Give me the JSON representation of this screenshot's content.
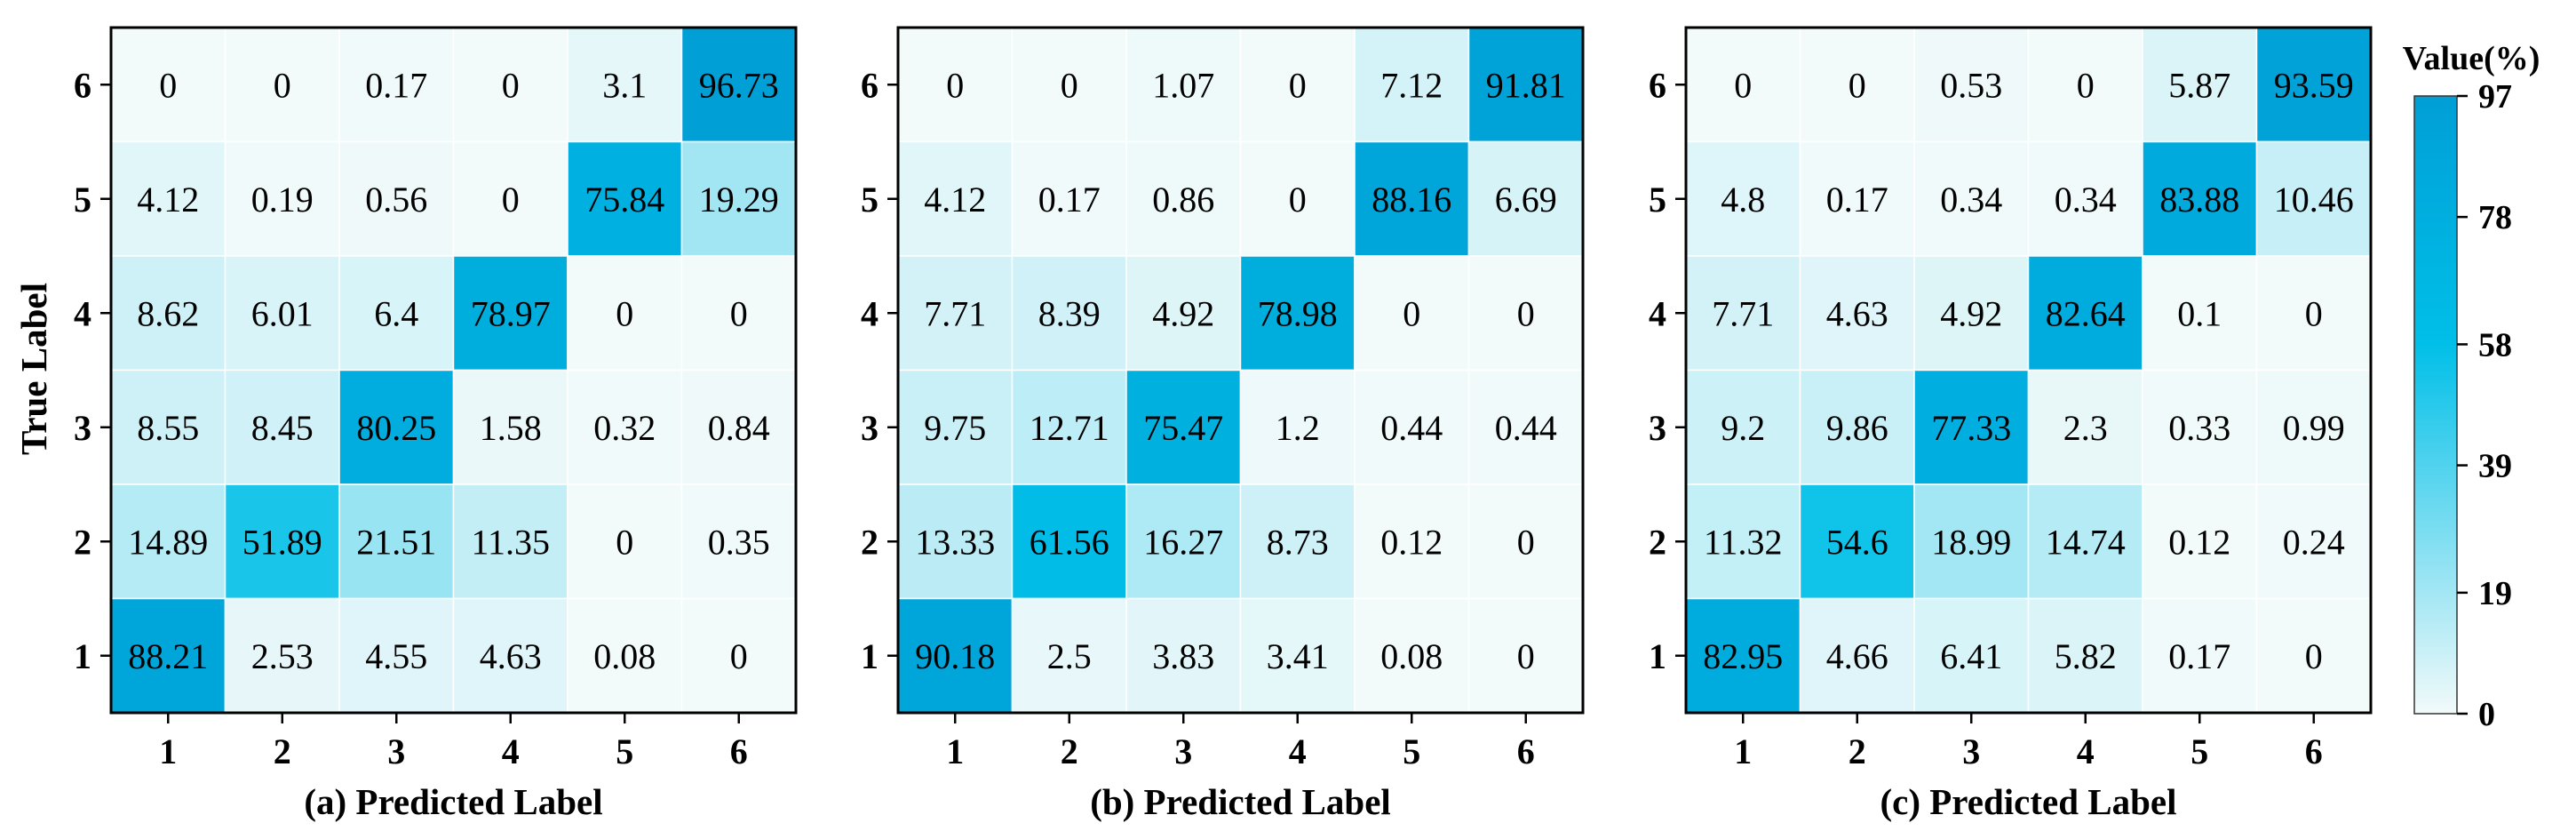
{
  "chart_data": {
    "type": "heatmap",
    "panels": [
      {
        "xlabel": "(a) Predicted Label",
        "ylabel": "True Label",
        "x_ticks": [
          "1",
          "2",
          "3",
          "4",
          "5",
          "6"
        ],
        "y_ticks": [
          "6",
          "5",
          "4",
          "3",
          "2",
          "1"
        ],
        "matrix": [
          [
            "0",
            "0",
            "0.17",
            "0",
            "3.1",
            "96.73"
          ],
          [
            "4.12",
            "0.19",
            "0.56",
            "0",
            "75.84",
            "19.29"
          ],
          [
            "8.62",
            "6.01",
            "6.4",
            "78.97",
            "0",
            "0"
          ],
          [
            "8.55",
            "8.45",
            "80.25",
            "1.58",
            "0.32",
            "0.84"
          ],
          [
            "14.89",
            "51.89",
            "21.51",
            "11.35",
            "0",
            "0.35"
          ],
          [
            "88.21",
            "2.53",
            "4.55",
            "4.63",
            "0.08",
            "0"
          ]
        ]
      },
      {
        "xlabel": "(b) Predicted Label",
        "ylabel": "",
        "x_ticks": [
          "1",
          "2",
          "3",
          "4",
          "5",
          "6"
        ],
        "y_ticks": [
          "6",
          "5",
          "4",
          "3",
          "2",
          "1"
        ],
        "matrix": [
          [
            "0",
            "0",
            "1.07",
            "0",
            "7.12",
            "91.81"
          ],
          [
            "4.12",
            "0.17",
            "0.86",
            "0",
            "88.16",
            "6.69"
          ],
          [
            "7.71",
            "8.39",
            "4.92",
            "78.98",
            "0",
            "0"
          ],
          [
            "9.75",
            "12.71",
            "75.47",
            "1.2",
            "0.44",
            "0.44"
          ],
          [
            "13.33",
            "61.56",
            "16.27",
            "8.73",
            "0.12",
            "0"
          ],
          [
            "90.18",
            "2.5",
            "3.83",
            "3.41",
            "0.08",
            "0"
          ]
        ]
      },
      {
        "xlabel": "(c) Predicted Label",
        "ylabel": "",
        "x_ticks": [
          "1",
          "2",
          "3",
          "4",
          "5",
          "6"
        ],
        "y_ticks": [
          "6",
          "5",
          "4",
          "3",
          "2",
          "1"
        ],
        "matrix": [
          [
            "0",
            "0",
            "0.53",
            "0",
            "5.87",
            "93.59"
          ],
          [
            "4.8",
            "0.17",
            "0.34",
            "0.34",
            "83.88",
            "10.46"
          ],
          [
            "7.71",
            "4.63",
            "4.92",
            "82.64",
            "0.1",
            "0"
          ],
          [
            "9.2",
            "9.86",
            "77.33",
            "2.3",
            "0.33",
            "0.99"
          ],
          [
            "11.32",
            "54.6",
            "18.99",
            "14.74",
            "0.12",
            "0.24"
          ],
          [
            "82.95",
            "4.66",
            "6.41",
            "5.82",
            "0.17",
            "0"
          ]
        ]
      }
    ],
    "colorbar": {
      "title": "Value(%)",
      "range": [
        0,
        97
      ],
      "ticks": [
        "0",
        "19",
        "39",
        "58",
        "78",
        "97"
      ],
      "colors": [
        "#f2fafa",
        "#00bfe8",
        "#009fd6"
      ]
    }
  }
}
